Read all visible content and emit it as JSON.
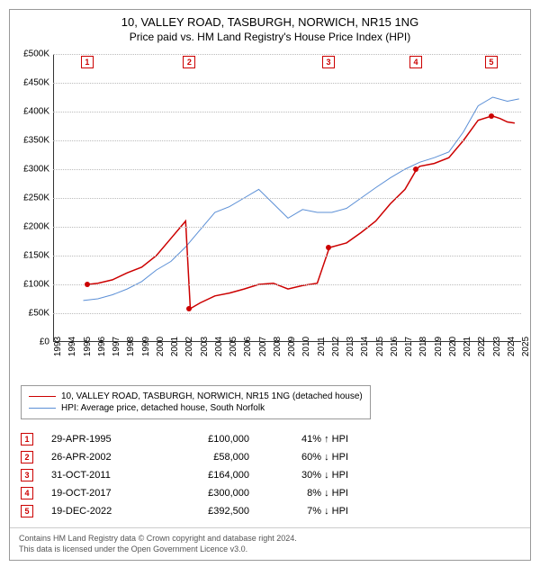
{
  "title_line1": "10, VALLEY ROAD, TASBURGH, NORWICH, NR15 1NG",
  "title_line2": "Price paid vs. HM Land Registry's House Price Index (HPI)",
  "chart": {
    "type": "line",
    "background_color": "#ffffff",
    "grid_color": "#bbbbbb",
    "ylim": [
      0,
      500000
    ],
    "ytick_step": 50000,
    "yticks": [
      "£0",
      "£50K",
      "£100K",
      "£150K",
      "£200K",
      "£250K",
      "£300K",
      "£350K",
      "£400K",
      "£450K",
      "£500K"
    ],
    "xlim": [
      1993,
      2025
    ],
    "xticks": [
      "1993",
      "1994",
      "1995",
      "1996",
      "1997",
      "1998",
      "1999",
      "2000",
      "2001",
      "2002",
      "2003",
      "2004",
      "2005",
      "2006",
      "2007",
      "2008",
      "2009",
      "2010",
      "2011",
      "2012",
      "2013",
      "2014",
      "2015",
      "2016",
      "2017",
      "2018",
      "2019",
      "2020",
      "2021",
      "2022",
      "2023",
      "2024",
      "2025"
    ],
    "series": [
      {
        "name": "property_price",
        "label": "10, VALLEY ROAD, TASBURGH, NORWICH, NR15 1NG (detached house)",
        "color": "#cc0000",
        "line_width": 1.5,
        "data": [
          [
            1995.33,
            100000
          ],
          [
            1996,
            102000
          ],
          [
            1997,
            108000
          ],
          [
            1998,
            120000
          ],
          [
            1999,
            130000
          ],
          [
            2000,
            150000
          ],
          [
            2001,
            180000
          ],
          [
            2002,
            210000
          ],
          [
            2002.32,
            58000
          ],
          [
            2003,
            68000
          ],
          [
            2004,
            80000
          ],
          [
            2005,
            85000
          ],
          [
            2006,
            92000
          ],
          [
            2007,
            100000
          ],
          [
            2008,
            102000
          ],
          [
            2009,
            92000
          ],
          [
            2010,
            98000
          ],
          [
            2011,
            102000
          ],
          [
            2011.83,
            164000
          ],
          [
            2012,
            165000
          ],
          [
            2013,
            172000
          ],
          [
            2014,
            190000
          ],
          [
            2015,
            210000
          ],
          [
            2016,
            240000
          ],
          [
            2017,
            265000
          ],
          [
            2017.8,
            300000
          ],
          [
            2018,
            305000
          ],
          [
            2019,
            310000
          ],
          [
            2020,
            320000
          ],
          [
            2021,
            350000
          ],
          [
            2022,
            385000
          ],
          [
            2022.96,
            392500
          ],
          [
            2023.5,
            388000
          ],
          [
            2024,
            382000
          ],
          [
            2024.5,
            380000
          ]
        ]
      },
      {
        "name": "hpi",
        "label": "HPI: Average price, detached house, South Norfolk",
        "color": "#5b8fd6",
        "line_width": 1,
        "data": [
          [
            1995,
            72000
          ],
          [
            1996,
            75000
          ],
          [
            1997,
            82000
          ],
          [
            1998,
            92000
          ],
          [
            1999,
            105000
          ],
          [
            2000,
            125000
          ],
          [
            2001,
            140000
          ],
          [
            2002,
            165000
          ],
          [
            2003,
            195000
          ],
          [
            2004,
            225000
          ],
          [
            2005,
            235000
          ],
          [
            2006,
            250000
          ],
          [
            2007,
            265000
          ],
          [
            2008,
            240000
          ],
          [
            2009,
            215000
          ],
          [
            2010,
            230000
          ],
          [
            2011,
            225000
          ],
          [
            2012,
            225000
          ],
          [
            2013,
            232000
          ],
          [
            2014,
            250000
          ],
          [
            2015,
            268000
          ],
          [
            2016,
            285000
          ],
          [
            2017,
            300000
          ],
          [
            2018,
            312000
          ],
          [
            2019,
            320000
          ],
          [
            2020,
            330000
          ],
          [
            2021,
            365000
          ],
          [
            2022,
            410000
          ],
          [
            2023,
            425000
          ],
          [
            2024,
            418000
          ],
          [
            2024.8,
            422000
          ]
        ]
      }
    ],
    "markers": [
      {
        "n": "1",
        "x": 1995.33,
        "y": 100000
      },
      {
        "n": "2",
        "x": 2002.32,
        "y": 58000
      },
      {
        "n": "3",
        "x": 2011.83,
        "y": 164000
      },
      {
        "n": "4",
        "x": 2017.8,
        "y": 300000
      },
      {
        "n": "5",
        "x": 2022.96,
        "y": 392500
      }
    ]
  },
  "transactions": [
    {
      "n": "1",
      "date": "29-APR-1995",
      "price": "£100,000",
      "diff": "41%",
      "arrow": "↑",
      "rel": "HPI"
    },
    {
      "n": "2",
      "date": "26-APR-2002",
      "price": "£58,000",
      "diff": "60%",
      "arrow": "↓",
      "rel": "HPI"
    },
    {
      "n": "3",
      "date": "31-OCT-2011",
      "price": "£164,000",
      "diff": "30%",
      "arrow": "↓",
      "rel": "HPI"
    },
    {
      "n": "4",
      "date": "19-OCT-2017",
      "price": "£300,000",
      "diff": "8%",
      "arrow": "↓",
      "rel": "HPI"
    },
    {
      "n": "5",
      "date": "19-DEC-2022",
      "price": "£392,500",
      "diff": "7%",
      "arrow": "↓",
      "rel": "HPI"
    }
  ],
  "footer_line1": "Contains HM Land Registry data © Crown copyright and database right 2024.",
  "footer_line2": "This data is licensed under the Open Government Licence v3.0."
}
